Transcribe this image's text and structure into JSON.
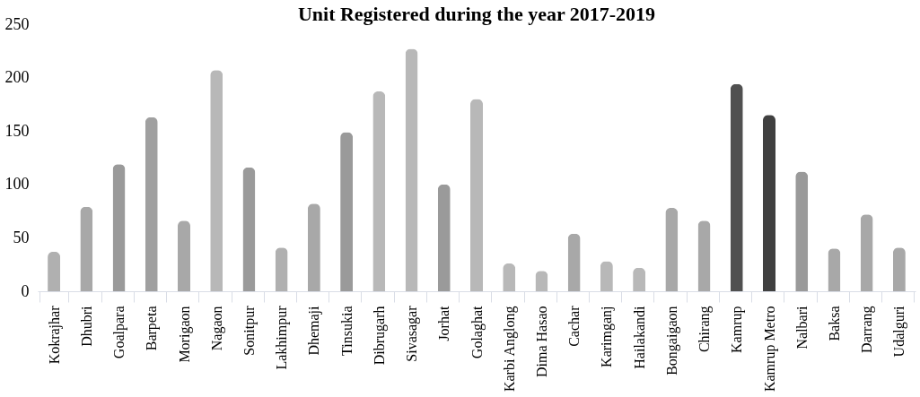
{
  "chart_data": {
    "type": "bar",
    "title": "Unit Registered during the year 2017-2019",
    "categories": [
      "Kokrajhar",
      "Dhubri",
      "Goalpara",
      "Barpeta",
      "Morigaon",
      "Nagaon",
      "Sonitpur",
      "Lakhimpur",
      "Dhemaji",
      "Tinsukia",
      "Dibrugarh",
      "Sivasagar",
      "Jorhat",
      "Golaghat",
      "Karbi Anglong",
      "Dima Hasao",
      "Cachar",
      "Karimganj",
      "Hailakandi",
      "Bongaigaon",
      "Chirang",
      "Kamrup",
      "Kamrup Metro",
      "Nalbari",
      "Baksa",
      "Darrang",
      "Udalguri"
    ],
    "values": [
      37,
      79,
      119,
      163,
      66,
      207,
      116,
      41,
      82,
      149,
      187,
      227,
      100,
      180,
      26,
      19,
      54,
      28,
      22,
      78,
      66,
      194,
      165,
      112,
      40,
      72,
      41
    ],
    "colors": [
      "#b0b0b0",
      "#a8a8a8",
      "#9a9a9a",
      "#a0a0a0",
      "#a8a8a8",
      "#b8b8b8",
      "#9a9a9a",
      "#b0b0b0",
      "#a8a8a8",
      "#9a9a9a",
      "#b8b8b8",
      "#b8b8b8",
      "#9a9a9a",
      "#b8b8b8",
      "#b8b8b8",
      "#b8b8b8",
      "#a8a8a8",
      "#b8b8b8",
      "#b8b8b8",
      "#a8a8a8",
      "#a8a8a8",
      "#505050",
      "#404040",
      "#9a9a9a",
      "#a8a8a8",
      "#a8a8a8",
      "#a8a8a8"
    ],
    "ylim": [
      0,
      250
    ],
    "yticks": [
      0,
      50,
      100,
      150,
      200,
      250
    ],
    "grid": false
  }
}
